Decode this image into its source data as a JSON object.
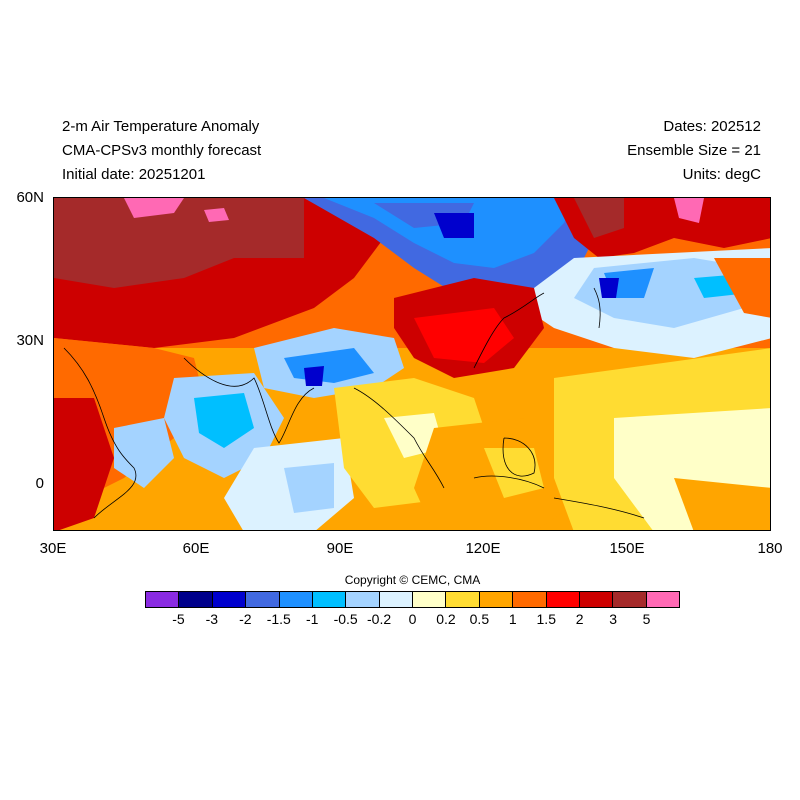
{
  "header": {
    "title_line1": "2-m Air Temperature Anomaly",
    "title_line2": "CMA-CPSv3 monthly forecast",
    "title_line3": "Initial date: 20251201",
    "right_line1": "Dates: 202512",
    "right_line2": "Ensemble Size = 21",
    "right_line3": "Units: degC"
  },
  "map": {
    "lon_range": [
      30,
      180
    ],
    "lat_range": [
      -10,
      60
    ],
    "y_ticks": [
      "60N",
      "30N",
      "0"
    ],
    "x_ticks": [
      "30E",
      "60E",
      "90E",
      "120E",
      "150E",
      "180"
    ]
  },
  "copyright": "Copyright © CEMC, CMA",
  "colorbar": {
    "colors": [
      "#8a2be2",
      "#00008b",
      "#0000cd",
      "#4169e1",
      "#1e90ff",
      "#00bfff",
      "#a4d3ff",
      "#dcf2ff",
      "#ffffc8",
      "#ffdc32",
      "#ffa500",
      "#ff6a00",
      "#ff0000",
      "#cd0000",
      "#a52a2a",
      "#ff69b4"
    ],
    "labels": [
      "-5",
      "-3",
      "-2",
      "-1.5",
      "-1",
      "-0.5",
      "-0.2",
      "0",
      "0.2",
      "0.5",
      "1",
      "1.5",
      "2",
      "3",
      "5"
    ]
  }
}
